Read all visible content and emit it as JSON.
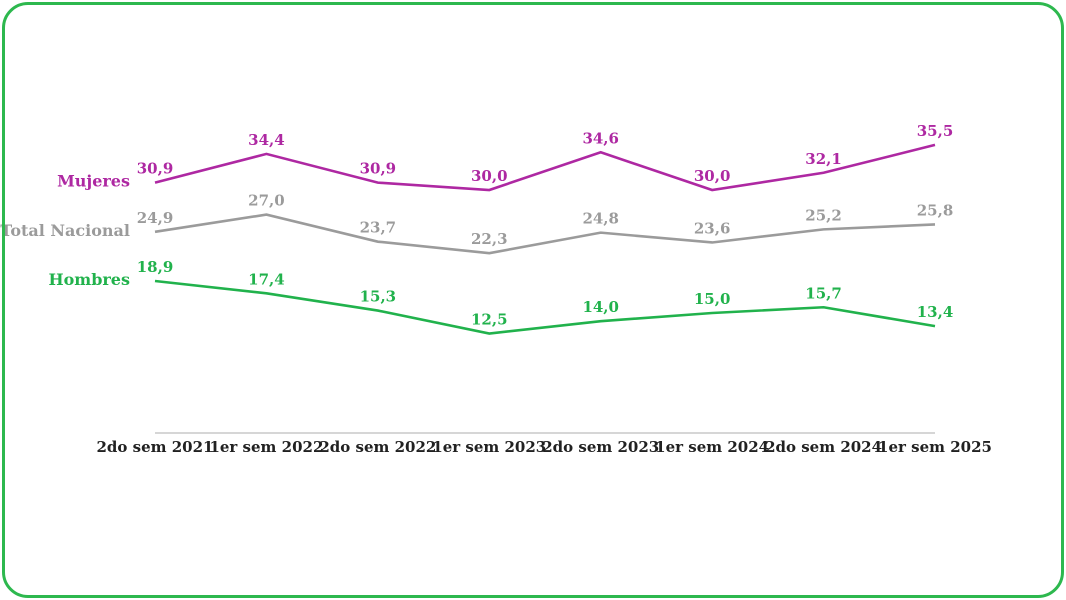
{
  "frame": {
    "border_color": "#2db84e"
  },
  "chart_data": {
    "type": "line",
    "title": "",
    "categories": [
      "2do sem 2021",
      "1er sem 2022",
      "2do sem 2022",
      "1er sem 2023",
      "2do sem 2023",
      "1er sem 2024",
      "2do sem 2024",
      "1er sem 2025"
    ],
    "series": [
      {
        "name": "Mujeres",
        "color": "#ae28a2",
        "values": [
          30.9,
          34.4,
          30.9,
          30.0,
          34.6,
          30.0,
          32.1,
          35.5
        ],
        "point_labels": [
          "30,9",
          "34,4",
          "30,9",
          "30,0",
          "34,6",
          "30,0",
          "32,1",
          "35,5"
        ]
      },
      {
        "name": "Total Nacional",
        "color": "#9b9b9b",
        "values": [
          24.9,
          27.0,
          23.7,
          22.3,
          24.8,
          23.6,
          25.2,
          25.8
        ],
        "point_labels": [
          "24,9",
          "27,0",
          "23,7",
          "22,3",
          "24,8",
          "23,6",
          "25,2",
          "25,8"
        ]
      },
      {
        "name": "Hombres",
        "color": "#21b24c",
        "values": [
          18.9,
          17.4,
          15.3,
          12.5,
          14.0,
          15.0,
          15.7,
          13.4
        ],
        "point_labels": [
          "18,9",
          "17,4",
          "15,3",
          "12,5",
          "14,0",
          "15,0",
          "15,7",
          "13,4"
        ]
      }
    ],
    "ylim": [
      0,
      40
    ],
    "grid": false,
    "xlabel": "",
    "ylabel": "",
    "legend_position": "left-of-first-point",
    "axis_color": "#c8c8c8",
    "tick_color": "#212121",
    "value_format": "decimal-comma-1"
  }
}
